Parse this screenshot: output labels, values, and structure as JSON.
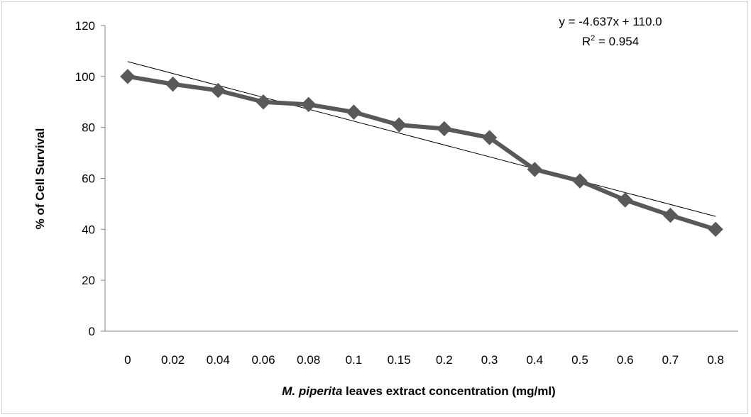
{
  "chart_data": {
    "type": "line",
    "categories": [
      "0",
      "0.02",
      "0.04",
      "0.06",
      "0.08",
      "0.1",
      "0.15",
      "0.2",
      "0.3",
      "0.4",
      "0.5",
      "0.6",
      "0.7",
      "0.8"
    ],
    "series": [
      {
        "values": [
          100,
          97,
          94.5,
          90,
          89,
          86,
          81,
          79.5,
          76,
          63.5,
          59,
          51.5,
          45.5,
          40
        ],
        "color": "#595959",
        "marker": "diamond"
      }
    ],
    "trendline": {
      "type": "linear",
      "slope": -4.637,
      "intercept": 110.0,
      "equation": "y = -4.637x + 110.0",
      "r2_prefix": "R",
      "r2_sup": "2",
      "r2_value": " = 0.954",
      "color": "#000000"
    },
    "title": "",
    "xlabel_italic": "M. piperita",
    "xlabel_rest": " leaves extract concentration (mg/ml)",
    "ylabel": "% of Cell Survival",
    "ylim": [
      0,
      120
    ],
    "yticks": [
      "0",
      "20",
      "40",
      "60",
      "80",
      "100",
      "120"
    ],
    "grid": false,
    "legend": "none"
  }
}
